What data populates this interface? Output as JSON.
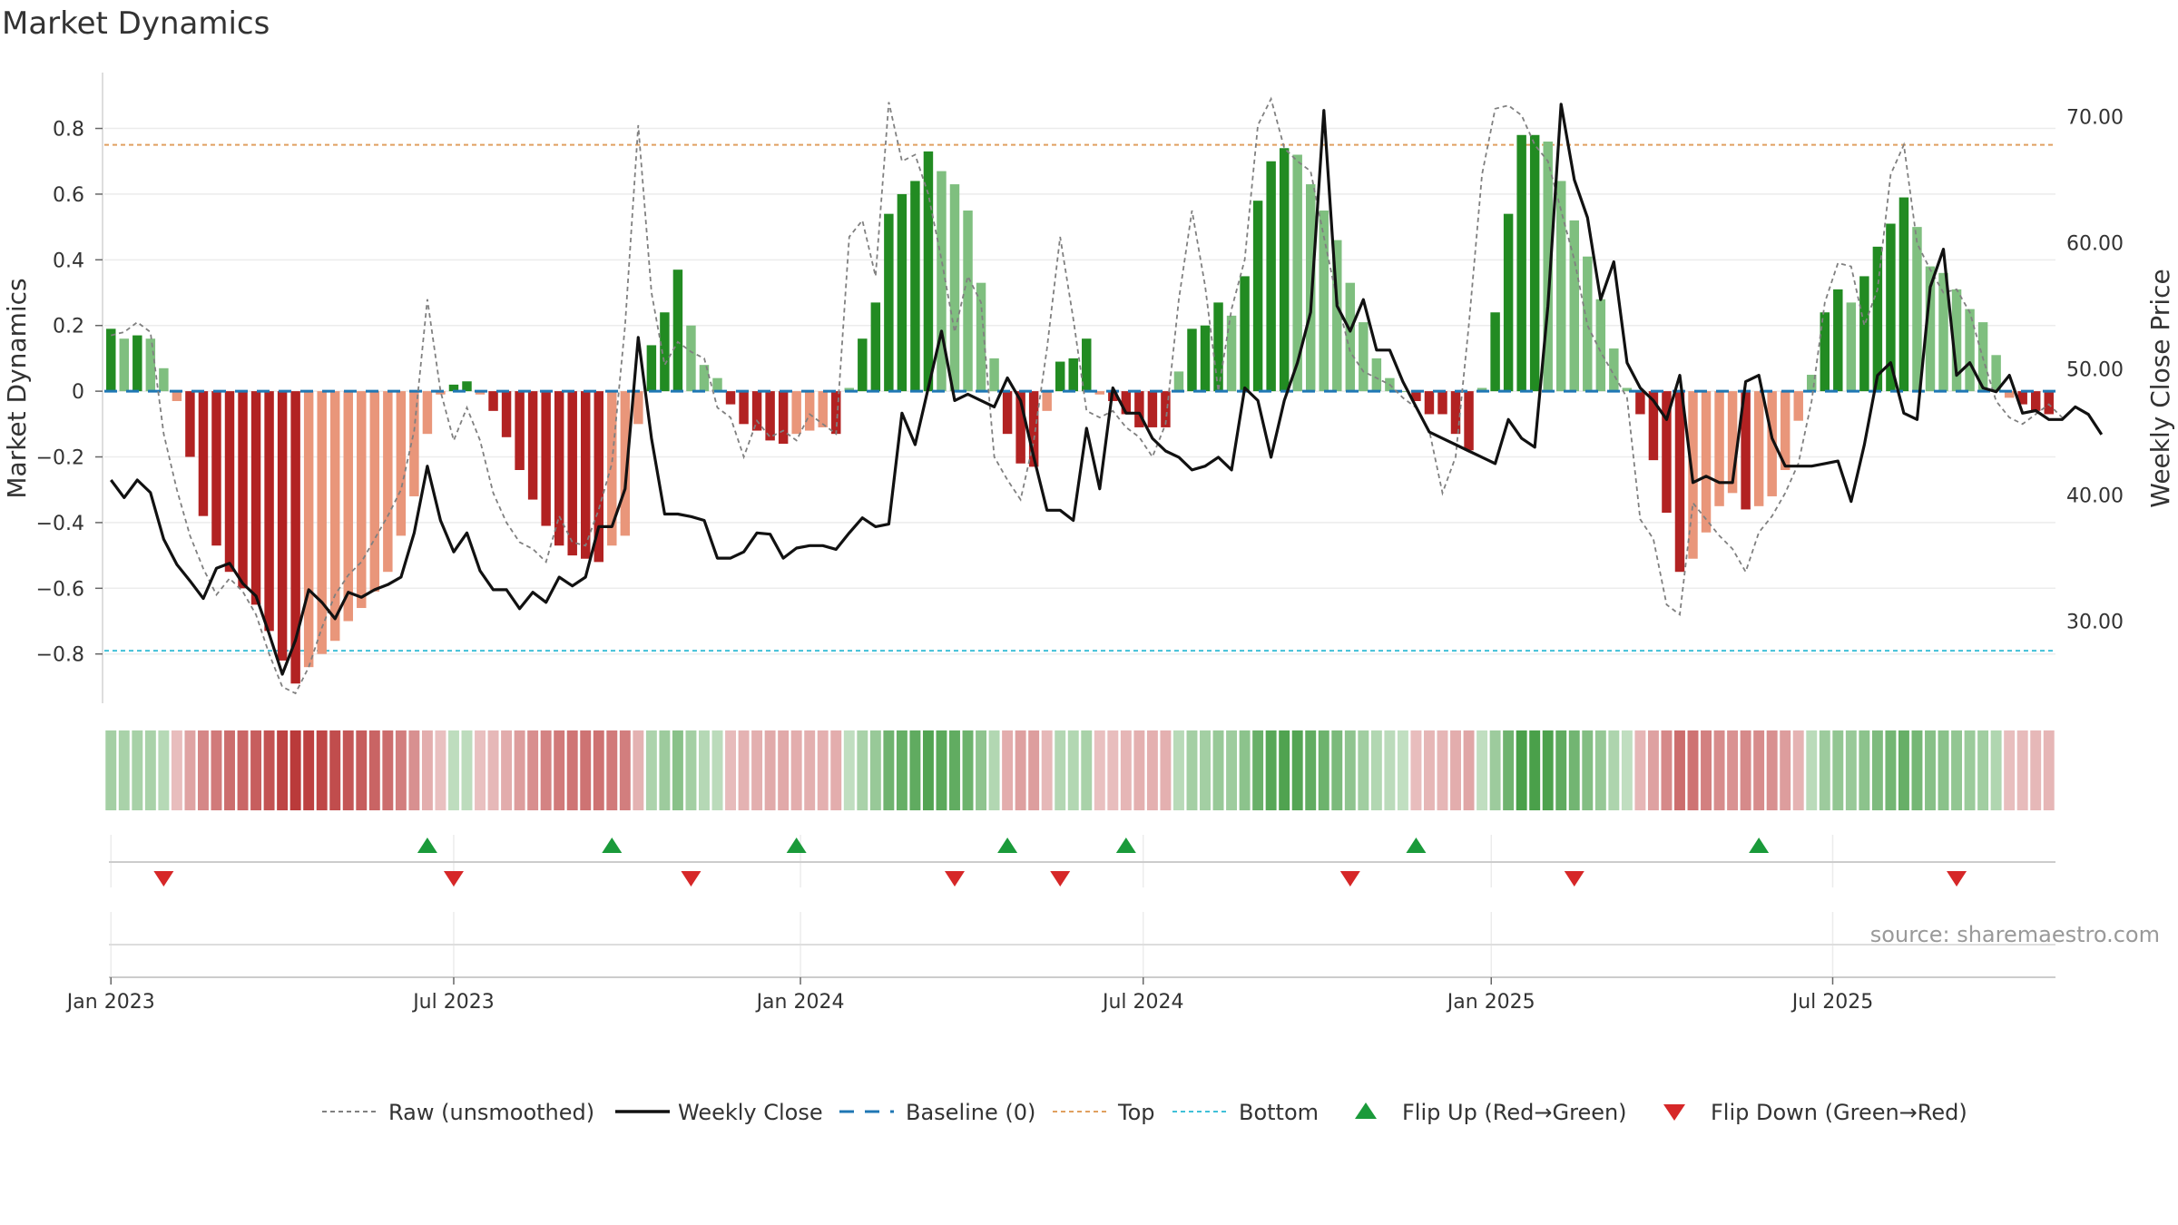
{
  "title": "Market Dynamics",
  "source": "source: sharemaestro.com",
  "colors": {
    "green_strong": "#228B22",
    "green_light": "#7FBF7F",
    "red_strong": "#B22222",
    "red_light": "#E9967A",
    "close": "#111111",
    "raw": "#808080",
    "baseline": "#1f77b4",
    "top": "#e0a060",
    "bottom": "#40c0d8",
    "flip_up": "#1a9a3a",
    "flip_down": "#d62728"
  },
  "chart_data": {
    "type": "bar",
    "title": "Market Dynamics",
    "ylabel": "Market Dynamics",
    "y2label": "Weekly Close Price",
    "ylim": [
      -0.95,
      0.97
    ],
    "y2lim": [
      23.5,
      73.5
    ],
    "yticks": [
      "−0.8",
      "−0.6",
      "−0.4",
      "−0.2",
      "0",
      "0.2",
      "0.4",
      "0.6",
      "0.8"
    ],
    "y2ticks": [
      "30.00",
      "40.00",
      "50.00",
      "60.00",
      "70.00"
    ],
    "xticks": [
      {
        "label": "Jan 2023",
        "week": 0
      },
      {
        "label": "Jul 2023",
        "week": 26
      },
      {
        "label": "Jan 2024",
        "week": 52.3
      },
      {
        "label": "Jul 2024",
        "week": 78.3
      },
      {
        "label": "Jan 2025",
        "week": 104.7
      },
      {
        "label": "Jul 2025",
        "week": 130.6
      }
    ],
    "top_level": 0.75,
    "bottom_level": -0.79,
    "baseline": 0,
    "start_date": "2022-12-26",
    "bar_values": [
      0.19,
      0.16,
      0.17,
      0.16,
      0.07,
      -0.03,
      -0.2,
      -0.38,
      -0.47,
      -0.55,
      -0.6,
      -0.65,
      -0.73,
      -0.82,
      -0.89,
      -0.84,
      -0.8,
      -0.76,
      -0.7,
      -0.66,
      -0.61,
      -0.55,
      -0.44,
      -0.32,
      -0.13,
      -0.01,
      0.02,
      0.03,
      -0.01,
      -0.06,
      -0.14,
      -0.24,
      -0.33,
      -0.41,
      -0.47,
      -0.5,
      -0.51,
      -0.52,
      -0.47,
      -0.44,
      -0.1,
      0.14,
      0.24,
      0.37,
      0.2,
      0.08,
      0.04,
      -0.04,
      -0.1,
      -0.12,
      -0.15,
      -0.16,
      -0.13,
      -0.12,
      -0.11,
      -0.13,
      0.01,
      0.16,
      0.27,
      0.54,
      0.6,
      0.64,
      0.73,
      0.67,
      0.63,
      0.55,
      0.33,
      0.1,
      -0.13,
      -0.22,
      -0.23,
      -0.06,
      0.09,
      0.1,
      0.16,
      -0.01,
      -0.03,
      -0.07,
      -0.11,
      -0.11,
      -0.11,
      0.06,
      0.19,
      0.2,
      0.27,
      0.23,
      0.35,
      0.58,
      0.7,
      0.74,
      0.72,
      0.63,
      0.55,
      0.46,
      0.33,
      0.21,
      0.1,
      0.04,
      0.0,
      -0.03,
      -0.07,
      -0.07,
      -0.13,
      -0.18,
      0.01,
      0.24,
      0.54,
      0.78,
      0.78,
      0.76,
      0.64,
      0.52,
      0.41,
      0.28,
      0.13,
      0.01,
      -0.07,
      -0.21,
      -0.37,
      -0.55,
      -0.51,
      -0.43,
      -0.35,
      -0.31,
      -0.36,
      -0.35,
      -0.32,
      -0.24,
      -0.09,
      0.05,
      0.24,
      0.31,
      0.27,
      0.35,
      0.44,
      0.51,
      0.59,
      0.5,
      0.38,
      0.36,
      0.31,
      0.25,
      0.21,
      0.11,
      -0.02,
      -0.04,
      -0.06,
      -0.07
    ],
    "close_values": [
      41.2,
      39.8,
      41.2,
      40.2,
      36.5,
      34.5,
      33.2,
      31.8,
      34.2,
      34.6,
      33.0,
      32.0,
      29.0,
      25.8,
      28.5,
      32.5,
      31.5,
      30.2,
      32.3,
      31.9,
      32.5,
      32.9,
      33.5,
      37.0,
      42.3,
      38.0,
      35.5,
      37.0,
      34.0,
      32.5,
      32.5,
      31.0,
      32.3,
      31.5,
      33.5,
      32.8,
      33.5,
      37.5,
      37.5,
      40.5,
      52.5,
      44.5,
      38.5,
      38.5,
      38.3,
      38.0,
      35.0,
      35.0,
      35.5,
      37.0,
      36.9,
      35.0,
      35.8,
      36.0,
      36.0,
      35.7,
      37.0,
      38.2,
      37.5,
      37.7,
      46.5,
      44.0,
      48.5,
      53.0,
      47.5,
      48.0,
      47.5,
      47.0,
      49.3,
      47.5,
      43.0,
      38.8,
      38.8,
      38.0,
      45.3,
      40.5,
      48.5,
      46.5,
      46.5,
      44.5,
      43.5,
      43.0,
      42.0,
      42.3,
      43.0,
      42.0,
      48.5,
      47.5,
      43.0,
      47.5,
      50.5,
      54.5,
      70.5,
      55.0,
      53.0,
      55.5,
      51.5,
      51.5,
      49.0,
      47.0,
      45.0,
      44.5,
      44.0,
      43.5,
      43.0,
      42.5,
      46.0,
      44.5,
      43.8,
      55.0,
      71.0,
      65.0,
      62.0,
      55.5,
      58.5,
      50.5,
      48.5,
      47.5,
      46.0,
      49.5,
      41.0,
      41.5,
      41.0,
      41.0,
      49.0,
      49.5,
      44.5,
      42.3,
      42.3,
      42.3,
      42.5,
      42.7,
      39.5,
      44.0,
      49.5,
      50.5,
      46.5,
      46.0,
      56.5,
      59.5,
      49.5,
      50.5,
      48.5,
      48.2,
      49.5,
      46.5,
      46.7,
      46.0,
      46.0,
      47.0,
      46.4,
      44.8
    ],
    "raw_values": [
      0.17,
      0.18,
      0.21,
      0.18,
      -0.13,
      -0.3,
      -0.44,
      -0.54,
      -0.62,
      -0.57,
      -0.61,
      -0.68,
      -0.8,
      -0.9,
      -0.92,
      -0.84,
      -0.72,
      -0.62,
      -0.56,
      -0.52,
      -0.45,
      -0.38,
      -0.3,
      -0.12,
      0.28,
      0.0,
      -0.15,
      -0.05,
      -0.15,
      -0.31,
      -0.4,
      -0.46,
      -0.48,
      -0.52,
      -0.38,
      -0.46,
      -0.47,
      -0.36,
      -0.22,
      0.2,
      0.81,
      0.3,
      0.08,
      0.15,
      0.12,
      0.1,
      -0.05,
      -0.08,
      -0.2,
      -0.09,
      -0.14,
      -0.12,
      -0.15,
      -0.07,
      -0.1,
      -0.13,
      0.47,
      0.52,
      0.35,
      0.88,
      0.7,
      0.72,
      0.6,
      0.4,
      0.18,
      0.35,
      0.27,
      -0.2,
      -0.27,
      -0.33,
      -0.15,
      0.13,
      0.47,
      0.22,
      -0.06,
      -0.08,
      -0.06,
      -0.11,
      -0.14,
      -0.2,
      -0.1,
      0.28,
      0.55,
      0.32,
      0.0,
      0.25,
      0.4,
      0.81,
      0.89,
      0.74,
      0.7,
      0.67,
      0.47,
      0.28,
      0.12,
      0.06,
      0.04,
      0.02,
      -0.02,
      -0.05,
      -0.12,
      -0.31,
      -0.2,
      0.2,
      0.66,
      0.86,
      0.87,
      0.84,
      0.75,
      0.7,
      0.55,
      0.4,
      0.2,
      0.12,
      0.05,
      -0.02,
      -0.39,
      -0.45,
      -0.65,
      -0.68,
      -0.34,
      -0.39,
      -0.44,
      -0.48,
      -0.55,
      -0.43,
      -0.38,
      -0.31,
      -0.22,
      -0.03,
      0.27,
      0.39,
      0.38,
      0.2,
      0.31,
      0.66,
      0.75,
      0.45,
      0.37,
      0.3,
      0.31,
      0.24,
      0.1,
      -0.03,
      -0.08,
      -0.1,
      -0.07,
      -0.04,
      -0.08
    ],
    "flip_up_weeks": [
      24,
      38,
      52,
      68,
      77,
      99,
      125
    ],
    "flip_down_weeks": [
      4,
      26,
      44,
      64,
      72,
      94,
      111,
      140
    ],
    "legend": [
      {
        "label": "Raw (unsmoothed)",
        "kind": "raw"
      },
      {
        "label": "Weekly Close",
        "kind": "close"
      },
      {
        "label": "Baseline (0)",
        "kind": "baseline"
      },
      {
        "label": "Top",
        "kind": "top"
      },
      {
        "label": "Bottom",
        "kind": "bottom"
      },
      {
        "label": "Flip Up (Red→Green)",
        "kind": "flip_up"
      },
      {
        "label": "Flip Down (Green→Red)",
        "kind": "flip_down"
      }
    ]
  }
}
